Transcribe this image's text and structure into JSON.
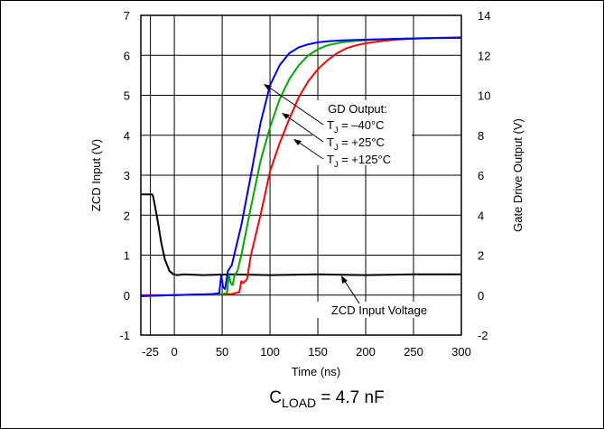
{
  "chart_data": {
    "type": "line",
    "xlabel": "Time (ns)",
    "ylabel_left": "ZCD Input (V)",
    "ylabel_right": "Gate Drive Output (V)",
    "xlim": [
      -35,
      300
    ],
    "ylim_left": [
      -1,
      7
    ],
    "ylim_right": [
      -2,
      14
    ],
    "x_ticks": [
      "-25",
      "0",
      "50",
      "100",
      "150",
      "200",
      "250",
      "300"
    ],
    "x_tick_values": [
      -25,
      0,
      50,
      100,
      150,
      200,
      250,
      300
    ],
    "y_left_ticks": [
      "-1",
      "0",
      "1",
      "2",
      "3",
      "4",
      "5",
      "6",
      "7"
    ],
    "y_right_ticks": [
      "-2",
      "0",
      "2",
      "4",
      "6",
      "8",
      "10",
      "12",
      "14"
    ],
    "grid": true,
    "caption_main": "C",
    "caption_sub": "LOAD",
    "caption_rest": " = 4.7 nF",
    "annotations": {
      "gd_title": "GD Output:",
      "tj_prefix": "T",
      "tj_sub": "J",
      "tj_labels": [
        " = –40°C",
        " = +25°C",
        " = +125°C"
      ],
      "zcd_label": "ZCD Input Voltage"
    },
    "series": [
      {
        "name": "ZCD Input Voltage",
        "axis": "left",
        "color": "#000000",
        "x": [
          -35,
          -23,
          -22,
          -20,
          -17,
          -14,
          -10,
          -5,
          -1,
          3,
          10,
          30,
          60,
          100,
          150,
          200,
          250,
          300
        ],
        "y": [
          2.52,
          2.52,
          2.45,
          2.2,
          1.8,
          1.35,
          0.9,
          0.6,
          0.52,
          0.5,
          0.52,
          0.5,
          0.52,
          0.5,
          0.52,
          0.5,
          0.52,
          0.52
        ]
      },
      {
        "name": "T_J = –40°C",
        "axis": "right",
        "color": "#0000ff",
        "x": [
          -35,
          0,
          40,
          47,
          49,
          51,
          53,
          56,
          60,
          70,
          80,
          90,
          100,
          110,
          120,
          130,
          140,
          150,
          160,
          175,
          190,
          210,
          230,
          250,
          270,
          300
        ],
        "y": [
          -0.05,
          0,
          0.05,
          0.1,
          1.0,
          0.4,
          0.3,
          1.2,
          1.5,
          3.5,
          6.0,
          8.6,
          10.5,
          11.5,
          12.1,
          12.4,
          12.55,
          12.65,
          12.7,
          12.75,
          12.77,
          12.8,
          12.82,
          12.84,
          12.86,
          12.88
        ]
      },
      {
        "name": "T_J = +25°C",
        "axis": "right",
        "color": "#00aa00",
        "x": [
          -35,
          0,
          50,
          55,
          57,
          59,
          61,
          63,
          66,
          70,
          80,
          90,
          100,
          110,
          120,
          130,
          140,
          150,
          160,
          175,
          190,
          210,
          230,
          250,
          270,
          300
        ],
        "y": [
          -0.05,
          0,
          0.05,
          0.1,
          1.0,
          0.6,
          0.5,
          1.0,
          1.2,
          2.0,
          4.4,
          6.7,
          8.4,
          9.8,
          10.8,
          11.5,
          12.0,
          12.3,
          12.5,
          12.65,
          12.72,
          12.78,
          12.82,
          12.85,
          12.87,
          12.88
        ]
      },
      {
        "name": "T_J = +125°C",
        "axis": "right",
        "color": "#ff0000",
        "x": [
          -35,
          0,
          60,
          68,
          70,
          72,
          76,
          80,
          90,
          100,
          110,
          120,
          130,
          140,
          150,
          160,
          170,
          180,
          190,
          200,
          215,
          230,
          250,
          270,
          300
        ],
        "y": [
          0,
          0,
          0.05,
          0.15,
          0.7,
          0.6,
          0.8,
          2.0,
          4.0,
          6.2,
          7.6,
          8.8,
          9.9,
          10.7,
          11.3,
          11.75,
          12.1,
          12.35,
          12.5,
          12.6,
          12.7,
          12.78,
          12.84,
          12.87,
          12.9
        ]
      }
    ]
  }
}
